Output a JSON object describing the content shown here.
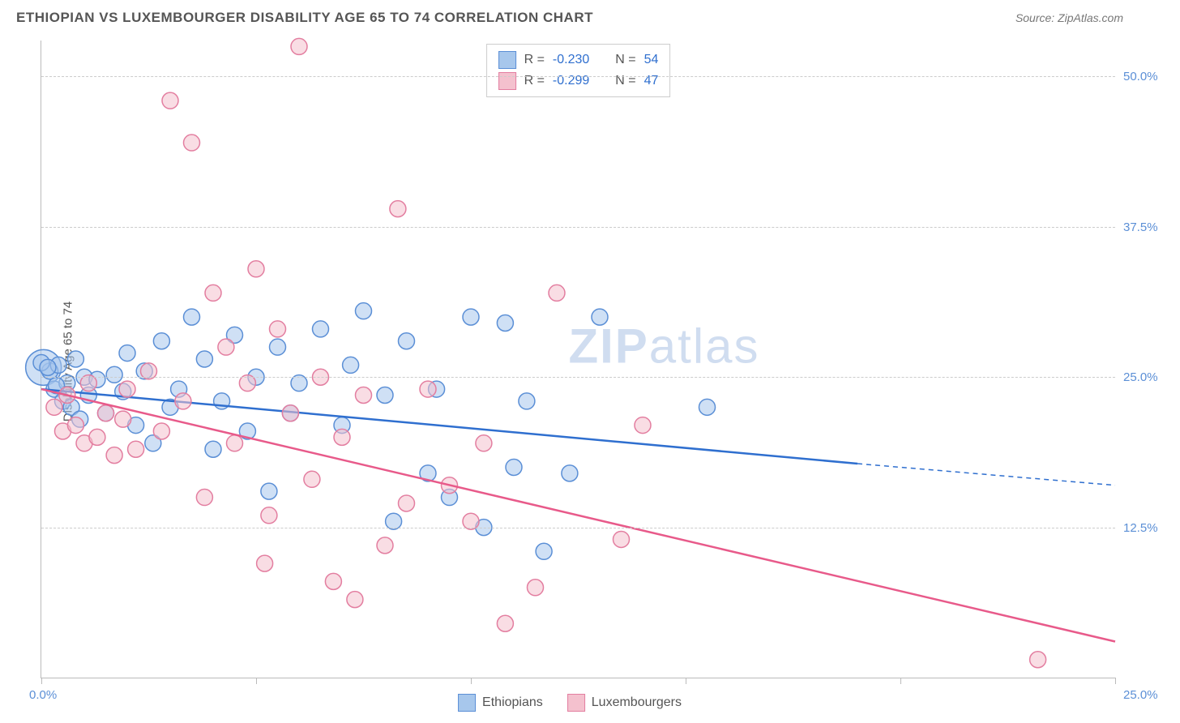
{
  "header": {
    "title": "ETHIOPIAN VS LUXEMBOURGER DISABILITY AGE 65 TO 74 CORRELATION CHART",
    "source": "Source: ZipAtlas.com"
  },
  "watermark": {
    "part1": "ZIP",
    "part2": "atlas"
  },
  "chart": {
    "type": "scatter-with-regression",
    "ylabel": "Disability Age 65 to 74",
    "background_color": "#ffffff",
    "grid_color": "#cccccc",
    "axis_color": "#bbbbbb",
    "tick_label_color": "#5b8fd6",
    "xlim": [
      0,
      25
    ],
    "ylim": [
      0,
      53
    ],
    "x_ticks": [
      0,
      5,
      10,
      15,
      20,
      25
    ],
    "x_tick_labels": {
      "first": "0.0%",
      "last": "25.0%"
    },
    "y_gridlines": [
      12.5,
      25.0,
      37.5,
      50.0
    ],
    "y_tick_labels": [
      "12.5%",
      "25.0%",
      "37.5%",
      "50.0%"
    ],
    "marker_radius": 10,
    "marker_opacity": 0.55,
    "line_width": 2.5,
    "series": [
      {
        "name": "Ethiopians",
        "color_fill": "#a7c7ec",
        "color_stroke": "#5b8fd6",
        "line_color": "#2f6fcf",
        "R": "-0.230",
        "N": "54",
        "regression": {
          "x1": 0,
          "y1": 24.0,
          "x2_solid": 19,
          "y2_solid": 17.8,
          "x2_dash": 25,
          "y2_dash": 16.0
        },
        "points": [
          [
            0.2,
            25.5
          ],
          [
            0.3,
            24.0
          ],
          [
            0.4,
            26.0
          ],
          [
            0.5,
            23.0
          ],
          [
            0.6,
            24.5
          ],
          [
            0.7,
            22.5
          ],
          [
            0.8,
            26.5
          ],
          [
            0.9,
            21.5
          ],
          [
            1.0,
            25.0
          ],
          [
            1.1,
            23.5
          ],
          [
            1.3,
            24.8
          ],
          [
            1.5,
            22.0
          ],
          [
            1.7,
            25.2
          ],
          [
            1.9,
            23.8
          ],
          [
            2.0,
            27.0
          ],
          [
            2.2,
            21.0
          ],
          [
            2.4,
            25.5
          ],
          [
            2.6,
            19.5
          ],
          [
            2.8,
            28.0
          ],
          [
            3.0,
            22.5
          ],
          [
            3.2,
            24.0
          ],
          [
            3.5,
            30.0
          ],
          [
            3.8,
            26.5
          ],
          [
            4.0,
            19.0
          ],
          [
            4.2,
            23.0
          ],
          [
            4.5,
            28.5
          ],
          [
            4.8,
            20.5
          ],
          [
            5.0,
            25.0
          ],
          [
            5.3,
            15.5
          ],
          [
            5.5,
            27.5
          ],
          [
            5.8,
            22.0
          ],
          [
            6.0,
            24.5
          ],
          [
            6.5,
            29.0
          ],
          [
            7.0,
            21.0
          ],
          [
            7.2,
            26.0
          ],
          [
            7.5,
            30.5
          ],
          [
            8.0,
            23.5
          ],
          [
            8.2,
            13.0
          ],
          [
            8.5,
            28.0
          ],
          [
            9.0,
            17.0
          ],
          [
            9.2,
            24.0
          ],
          [
            9.5,
            15.0
          ],
          [
            10.0,
            30.0
          ],
          [
            10.3,
            12.5
          ],
          [
            10.8,
            29.5
          ],
          [
            11.0,
            17.5
          ],
          [
            11.3,
            23.0
          ],
          [
            11.7,
            10.5
          ],
          [
            12.3,
            17.0
          ],
          [
            13.0,
            30.0
          ],
          [
            15.5,
            22.5
          ],
          [
            0.0,
            26.2
          ],
          [
            0.15,
            25.8
          ],
          [
            0.35,
            24.3
          ]
        ],
        "large_marker": {
          "x": 0.05,
          "y": 25.8,
          "r": 22
        }
      },
      {
        "name": "Luxembourgers",
        "color_fill": "#f4c1ce",
        "color_stroke": "#e37ea0",
        "line_color": "#e85a8a",
        "R": "-0.299",
        "N": "47",
        "regression": {
          "x1": 0,
          "y1": 24.0,
          "x2_solid": 25,
          "y2_solid": 3.0,
          "x2_dash": 25,
          "y2_dash": 3.0
        },
        "points": [
          [
            0.3,
            22.5
          ],
          [
            0.5,
            20.5
          ],
          [
            0.6,
            23.5
          ],
          [
            0.8,
            21.0
          ],
          [
            1.0,
            19.5
          ],
          [
            1.1,
            24.5
          ],
          [
            1.3,
            20.0
          ],
          [
            1.5,
            22.0
          ],
          [
            1.7,
            18.5
          ],
          [
            1.9,
            21.5
          ],
          [
            2.0,
            24.0
          ],
          [
            2.2,
            19.0
          ],
          [
            2.5,
            25.5
          ],
          [
            2.8,
            20.5
          ],
          [
            3.0,
            48.0
          ],
          [
            3.3,
            23.0
          ],
          [
            3.5,
            44.5
          ],
          [
            3.8,
            15.0
          ],
          [
            4.0,
            32.0
          ],
          [
            4.3,
            27.5
          ],
          [
            4.5,
            19.5
          ],
          [
            4.8,
            24.5
          ],
          [
            5.0,
            34.0
          ],
          [
            5.3,
            13.5
          ],
          [
            5.5,
            29.0
          ],
          [
            5.8,
            22.0
          ],
          [
            6.0,
            52.5
          ],
          [
            6.3,
            16.5
          ],
          [
            6.5,
            25.0
          ],
          [
            7.0,
            20.0
          ],
          [
            7.3,
            6.5
          ],
          [
            7.5,
            23.5
          ],
          [
            8.0,
            11.0
          ],
          [
            8.3,
            39.0
          ],
          [
            8.5,
            14.5
          ],
          [
            9.0,
            24.0
          ],
          [
            9.5,
            16.0
          ],
          [
            10.0,
            13.0
          ],
          [
            10.3,
            19.5
          ],
          [
            10.8,
            4.5
          ],
          [
            11.5,
            7.5
          ],
          [
            12.0,
            32.0
          ],
          [
            13.5,
            11.5
          ],
          [
            14.0,
            21.0
          ],
          [
            23.2,
            1.5
          ],
          [
            6.8,
            8.0
          ],
          [
            5.2,
            9.5
          ]
        ]
      }
    ]
  },
  "legend_bottom": [
    {
      "label": "Ethiopians",
      "fill": "#a7c7ec",
      "stroke": "#5b8fd6"
    },
    {
      "label": "Luxembourgers",
      "fill": "#f4c1ce",
      "stroke": "#e37ea0"
    }
  ]
}
